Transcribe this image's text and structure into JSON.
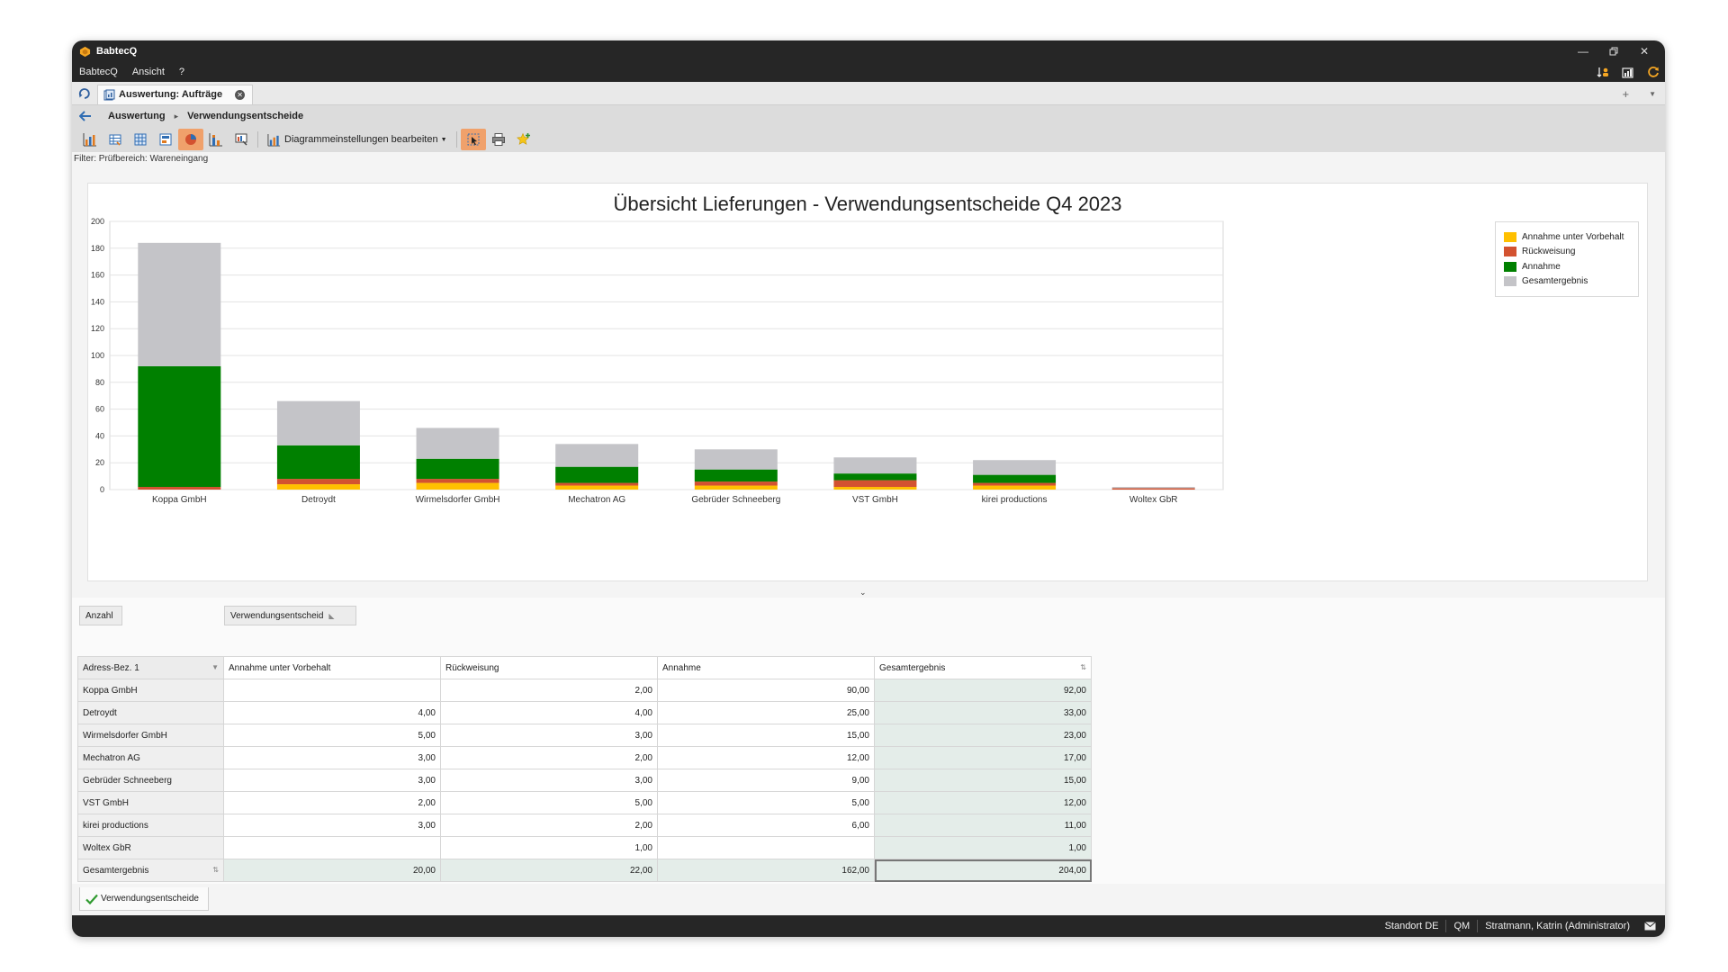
{
  "window": {
    "title": "BabtecQ"
  },
  "menu": {
    "items": [
      "BabtecQ",
      "Ansicht",
      "?"
    ]
  },
  "tabs": [
    {
      "label": "Auswertung: Aufträge"
    }
  ],
  "breadcrumb": {
    "items": [
      "Auswertung",
      "Verwendungsentscheide"
    ]
  },
  "toolbar": {
    "dropdown_label": "Diagrammeinstellungen bearbeiten"
  },
  "filter": {
    "text": "Filter: Prüfbereich: Wareneingang"
  },
  "chart_data": {
    "type": "bar",
    "stacked": true,
    "title": "Übersicht Lieferungen - Verwendungsentscheide Q4 2023",
    "categories": [
      "Koppa GmbH",
      "Detroydt",
      "Wirmelsdorfer GmbH",
      "Mechatron AG",
      "Gebrüder Schneeberg",
      "VST GmbH",
      "kirei productions",
      "Woltex GbR"
    ],
    "ylim": [
      0,
      200
    ],
    "yticks": [
      0,
      20,
      40,
      60,
      80,
      100,
      120,
      140,
      160,
      180,
      200
    ],
    "grid": true,
    "legend_position": "right",
    "series": [
      {
        "name": "Annahme unter Vorbehalt",
        "color": "#ffc000",
        "values": [
          0,
          4,
          5,
          3,
          3,
          2,
          3,
          0
        ]
      },
      {
        "name": "Rückweisung",
        "color": "#d35230",
        "values": [
          2,
          4,
          3,
          2,
          3,
          5,
          2,
          1
        ]
      },
      {
        "name": "Annahme",
        "color": "#008000",
        "values": [
          90,
          25,
          15,
          12,
          9,
          5,
          6,
          0
        ]
      },
      {
        "name": "Gesamtergebnis",
        "color": "#c4c4c8",
        "values": [
          92,
          33,
          23,
          17,
          15,
          12,
          11,
          1
        ]
      }
    ]
  },
  "pivot": {
    "data_field": "Anzahl",
    "column_field": "Verwendungsentscheid",
    "row_field": "Adress-Bez. 1",
    "columns": [
      "Annahme unter Vorbehalt",
      "Rückweisung",
      "Annahme",
      "Gesamtergebnis"
    ],
    "rows": [
      {
        "label": "Koppa GmbH",
        "values": [
          "",
          "2,00",
          "90,00",
          "92,00"
        ]
      },
      {
        "label": "Detroydt",
        "values": [
          "4,00",
          "4,00",
          "25,00",
          "33,00"
        ]
      },
      {
        "label": "Wirmelsdorfer GmbH",
        "values": [
          "5,00",
          "3,00",
          "15,00",
          "23,00"
        ]
      },
      {
        "label": "Mechatron AG",
        "values": [
          "3,00",
          "2,00",
          "12,00",
          "17,00"
        ]
      },
      {
        "label": "Gebrüder Schneeberg",
        "values": [
          "3,00",
          "3,00",
          "9,00",
          "15,00"
        ]
      },
      {
        "label": "VST GmbH",
        "values": [
          "2,00",
          "5,00",
          "5,00",
          "12,00"
        ]
      },
      {
        "label": "kirei productions",
        "values": [
          "3,00",
          "2,00",
          "6,00",
          "11,00"
        ]
      },
      {
        "label": "Woltex GbR",
        "values": [
          "",
          "1,00",
          "",
          "1,00"
        ]
      }
    ],
    "total": {
      "label": "Gesamtergebnis",
      "values": [
        "20,00",
        "22,00",
        "162,00",
        "204,00"
      ]
    }
  },
  "bottom_tab": {
    "label": "Verwendungsentscheide"
  },
  "status": {
    "location": "Standort DE",
    "module": "QM",
    "user": "Stratmann, Katrin (Administrator)"
  },
  "colors": {
    "chrome": "#262626",
    "accent": "#f0a16b"
  }
}
